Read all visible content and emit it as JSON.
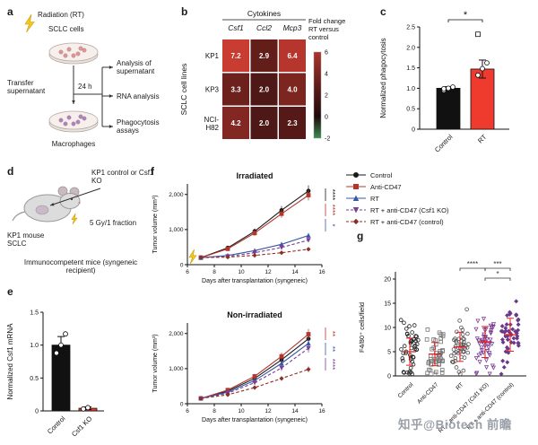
{
  "watermark": "知乎@Biotech 前瞻",
  "panels": {
    "a": {
      "label": "a",
      "radiation": "Radiation (RT)",
      "sclc_cells": "SCLC cells",
      "transfer": "Transfer supernatant",
      "time": "24 h",
      "macrophages": "Macrophages",
      "outputs": [
        "Analysis of supernatant",
        "RNA analysis",
        "Phagocytosis assays"
      ]
    },
    "b": {
      "label": "b"
    },
    "c": {
      "label": "c"
    },
    "d": {
      "label": "d",
      "mouse_model": "KP1 mouse SCLC",
      "tumor_groups": "KP1 control or Csf1 KO",
      "dose": "5 Gy/1 fraction",
      "recipient": "Immunocompetent mice (syngeneic recipient)"
    },
    "e": {
      "label": "e"
    },
    "f": {
      "label": "f",
      "legend": [
        {
          "name": "Control",
          "color": "#1a1a1a",
          "dash": false,
          "marker": "circle"
        },
        {
          "name": "Anti-CD47",
          "color": "#b1372c",
          "dash": false,
          "marker": "square"
        },
        {
          "name": "RT",
          "color": "#3a57a7",
          "dash": false,
          "marker": "tri-up"
        },
        {
          "name": "RT + anti-CD47 (Csf1 KO)",
          "color": "#7a3f98",
          "dash": true,
          "marker": "tri-down"
        },
        {
          "name": "RT + anti-CD47 (control)",
          "color": "#8e2f22",
          "dash": true,
          "marker": "diamond"
        }
      ]
    },
    "g": {
      "label": "g"
    }
  },
  "chart_data": [
    {
      "id": "b-heatmap",
      "type": "heatmap",
      "title": "Cytokines",
      "ylabel": "SCLC cell lines",
      "columns": [
        "Csf1",
        "Ccl2",
        "Mcp3"
      ],
      "rows": [
        "KP1",
        "KP3",
        "NCI-H82"
      ],
      "values": [
        [
          7.2,
          2.9,
          6.4
        ],
        [
          3.3,
          2.0,
          4.0
        ],
        [
          4.2,
          2.0,
          2.3
        ]
      ],
      "colorbar": {
        "label_lines": [
          "Fold change",
          "RT versus",
          "control"
        ],
        "ticks": [
          6,
          4,
          2,
          0,
          -2
        ],
        "domain": [
          -2,
          7.5
        ],
        "positive_high": "#d03e34",
        "zero": "#1e0a0a",
        "negative": "#3a8d54"
      }
    },
    {
      "id": "c-bar",
      "type": "bar",
      "ylabel": "Normalized phagocytosis",
      "categories": [
        "Control",
        "RT"
      ],
      "values": [
        1.0,
        1.47
      ],
      "errors": [
        0.04,
        0.22
      ],
      "colors": [
        "#111111",
        "#ee3b2e"
      ],
      "ylim": [
        0,
        2.5
      ],
      "yticks": [
        0,
        0.5,
        1,
        1.5,
        2,
        2.5
      ],
      "yticklabels": [
        "0",
        "0.5",
        "1.0",
        "1.5",
        "2.0",
        "2.5"
      ],
      "points": [
        [
          0.95,
          1.0,
          1.03,
          0.99
        ],
        [
          1.32,
          1.48,
          1.62,
          2.32
        ]
      ],
      "point_shapes": [
        [
          "circle",
          "circle",
          "circle",
          "circle"
        ],
        [
          "circle",
          "circle",
          "circle",
          "square"
        ]
      ],
      "significance": "*"
    },
    {
      "id": "e-bar",
      "type": "bar",
      "ylabel": "Normalized Csf1 mRNA",
      "categories": [
        "Control",
        "Csf1 KO"
      ],
      "values": [
        1.0,
        0.04
      ],
      "errors": [
        0.13,
        0.02
      ],
      "colors": [
        "#111111",
        "#ee3b2e"
      ],
      "ylim": [
        0,
        1.5
      ],
      "yticks": [
        0,
        0.5,
        1,
        1.5
      ],
      "yticklabels": [
        "0",
        "0.5",
        "1.0",
        "1.5"
      ],
      "points": [
        [
          0.88,
          1.0,
          1.17
        ],
        [
          0.03,
          0.05
        ]
      ],
      "point_shapes": [
        [
          "circle",
          "circle",
          "circle"
        ],
        [
          "circle",
          "circle"
        ]
      ]
    },
    {
      "id": "f-irradiated",
      "type": "line",
      "title": "Irradiated",
      "xlabel": "Days after transplantation (syngeneic)",
      "ylabel": "Tumor volume (mm³)",
      "xlim": [
        6,
        16
      ],
      "ylim": [
        0,
        2300
      ],
      "xticks": [
        6,
        8,
        10,
        12,
        14,
        16
      ],
      "yticks": [
        0,
        1000,
        2000
      ],
      "yticklabels": [
        "0",
        "1,000",
        "2,000"
      ],
      "x": [
        7,
        9,
        11,
        13,
        15
      ],
      "bolt_day": 7,
      "series": [
        {
          "name": "Control",
          "color": "#1a1a1a",
          "dash": false,
          "marker": "circle",
          "values": [
            200,
            480,
            950,
            1550,
            2100
          ]
        },
        {
          "name": "Anti-CD47",
          "color": "#b1372c",
          "dash": false,
          "marker": "square",
          "values": [
            200,
            450,
            900,
            1450,
            1980
          ]
        },
        {
          "name": "RT",
          "color": "#3a57a7",
          "dash": false,
          "marker": "tri-up",
          "values": [
            200,
            260,
            400,
            580,
            830
          ]
        },
        {
          "name": "RT + anti-CD47 (Csf1 KO)",
          "color": "#7a3f98",
          "dash": true,
          "marker": "tri-down",
          "values": [
            200,
            235,
            340,
            490,
            700
          ]
        },
        {
          "name": "RT + anti-CD47 (control)",
          "color": "#8e2f22",
          "dash": true,
          "marker": "diamond",
          "values": [
            200,
            215,
            265,
            340,
            440
          ]
        }
      ],
      "significance": [
        {
          "label": "****",
          "color": "#1a1a1a"
        },
        {
          "label": "****",
          "color": "#b1372c"
        },
        {
          "label": "*",
          "color": "#3a57a7"
        }
      ]
    },
    {
      "id": "f-nonirradiated",
      "type": "line",
      "title": "Non-irradiated",
      "xlabel": "Days after transplantation (syngeneic)",
      "ylabel": "Tumor volume (mm³)",
      "xlim": [
        6,
        16
      ],
      "ylim": [
        0,
        2300
      ],
      "xticks": [
        6,
        8,
        10,
        12,
        14,
        16
      ],
      "yticks": [
        0,
        1000,
        2000
      ],
      "yticklabels": [
        "0",
        "1,000",
        "2,000"
      ],
      "x": [
        7,
        9,
        11,
        13,
        15
      ],
      "series": [
        {
          "name": "Control",
          "color": "#1a1a1a",
          "dash": false,
          "marker": "circle",
          "values": [
            150,
            360,
            720,
            1250,
            1850
          ]
        },
        {
          "name": "Anti-CD47",
          "color": "#b1372c",
          "dash": false,
          "marker": "square",
          "values": [
            150,
            390,
            780,
            1350,
            1980
          ]
        },
        {
          "name": "RT",
          "color": "#3a57a7",
          "dash": false,
          "marker": "tri-up",
          "values": [
            150,
            330,
            660,
            1150,
            1720
          ]
        },
        {
          "name": "RT + anti-CD47 (Csf1 KO)",
          "color": "#7a3f98",
          "dash": true,
          "marker": "tri-down",
          "values": [
            150,
            300,
            600,
            1020,
            1580
          ]
        },
        {
          "name": "RT + anti-CD47 (control)",
          "color": "#8e2f22",
          "dash": true,
          "marker": "diamond",
          "values": [
            150,
            255,
            460,
            720,
            980
          ]
        }
      ],
      "significance": [
        {
          "label": "**",
          "color": "#b1372c"
        },
        {
          "label": "**",
          "color": "#3a57a7"
        },
        {
          "label": "****",
          "color": "#7a3f98"
        }
      ]
    },
    {
      "id": "g-scatter",
      "type": "scatter",
      "ylabel": "F4/80⁺ cells/field",
      "ylim": [
        0,
        20
      ],
      "yticks": [
        0,
        5,
        10,
        15,
        20
      ],
      "yticklabels": [
        "0",
        "5",
        "10",
        "15",
        "20"
      ],
      "categories": [
        "Control",
        "Anti-CD47",
        "RT",
        "RT + anti-CD47 (Csf1 KO)",
        "RT + anti-CD47 (control)"
      ],
      "groups": [
        {
          "marker": "circle",
          "color": "#222222",
          "filled": false,
          "mean": 5,
          "sd": 2.8,
          "n": 48
        },
        {
          "marker": "square",
          "color": "#777777",
          "filled": false,
          "mean": 4.5,
          "sd": 2.4,
          "n": 48
        },
        {
          "marker": "circle",
          "color": "#555555",
          "filled": false,
          "mean": 6,
          "sd": 3.0,
          "n": 48
        },
        {
          "marker": "tri-down",
          "color": "#7a3f98",
          "filled": false,
          "mean": 7,
          "sd": 3.2,
          "n": 48
        },
        {
          "marker": "diamond",
          "color": "#6a3a8a",
          "filled": true,
          "mean": 8.5,
          "sd": 3.4,
          "n": 48
        }
      ],
      "error_color": "#e02020",
      "significance": [
        {
          "label": "****",
          "from": 2,
          "to": 3,
          "low": false
        },
        {
          "label": "***",
          "from": 3,
          "to": 4,
          "low": false
        },
        {
          "label": "*",
          "from": 3,
          "to": 4,
          "low": true
        }
      ]
    }
  ]
}
